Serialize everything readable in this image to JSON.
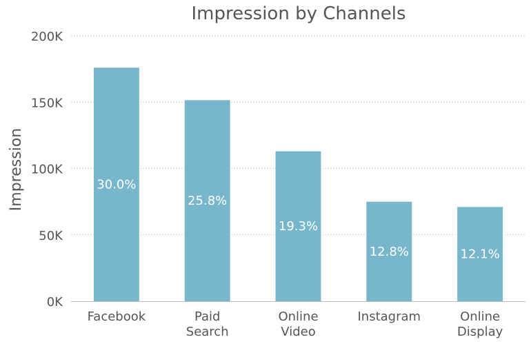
{
  "chart_data": {
    "type": "bar",
    "title": "Impression by Channels",
    "ylabel": "Impression",
    "xlabel": "",
    "categories": [
      [
        "Facebook"
      ],
      [
        "Paid",
        "Search"
      ],
      [
        "Online",
        "Video"
      ],
      [
        "Instagram"
      ],
      [
        "Online",
        "Display"
      ]
    ],
    "values": [
      176000,
      151500,
      113000,
      75000,
      71000
    ],
    "data_labels": [
      "30.0%",
      "25.8%",
      "19.3%",
      "12.8%",
      "12.1%"
    ],
    "ylim": [
      0,
      200000
    ],
    "yticks": [
      0,
      50000,
      100000,
      150000,
      200000
    ],
    "ytick_labels": [
      "0K",
      "50K",
      "100K",
      "150K",
      "200K"
    ],
    "grid": true,
    "legend": "none",
    "colors": {
      "bar": "#78b7cb",
      "text": "#555555",
      "label": "#ffffff",
      "grid": "#c8c8c8",
      "axis": "#bbbbbb"
    }
  }
}
